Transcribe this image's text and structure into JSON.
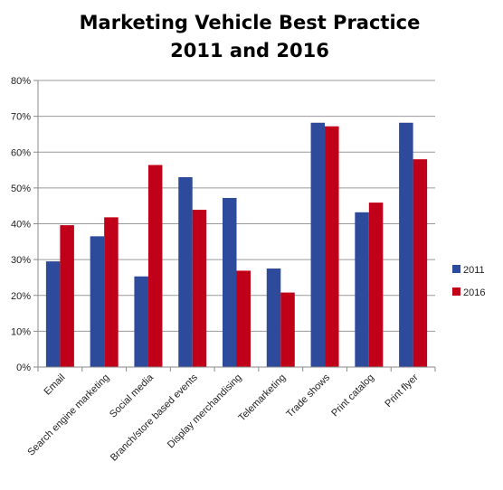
{
  "chart_data": {
    "type": "bar",
    "title_lines": [
      "Marketing Vehicle Best Practice",
      "2011 and 2016"
    ],
    "categories": [
      "Email",
      "Search engine marketing",
      "Social media",
      "Branch/store based events",
      "Display merchandising",
      "Telemarketing",
      "Trade shows",
      "Print catalog",
      "Print flyer"
    ],
    "series": [
      {
        "name": "2011",
        "color": "#2E4A9B",
        "values": [
          29.5,
          36.5,
          25.3,
          53.0,
          47.2,
          27.5,
          68.2,
          43.2,
          68.2
        ]
      },
      {
        "name": "2016",
        "color": "#C00018",
        "values": [
          39.6,
          41.8,
          56.4,
          43.9,
          26.9,
          20.8,
          67.2,
          45.9,
          58.0
        ]
      }
    ],
    "y_ticks": [
      "0%",
      "10%",
      "20%",
      "30%",
      "40%",
      "50%",
      "60%",
      "70%",
      "80%"
    ],
    "ylim": [
      0,
      80
    ],
    "grid": true,
    "legend_position": "right"
  }
}
